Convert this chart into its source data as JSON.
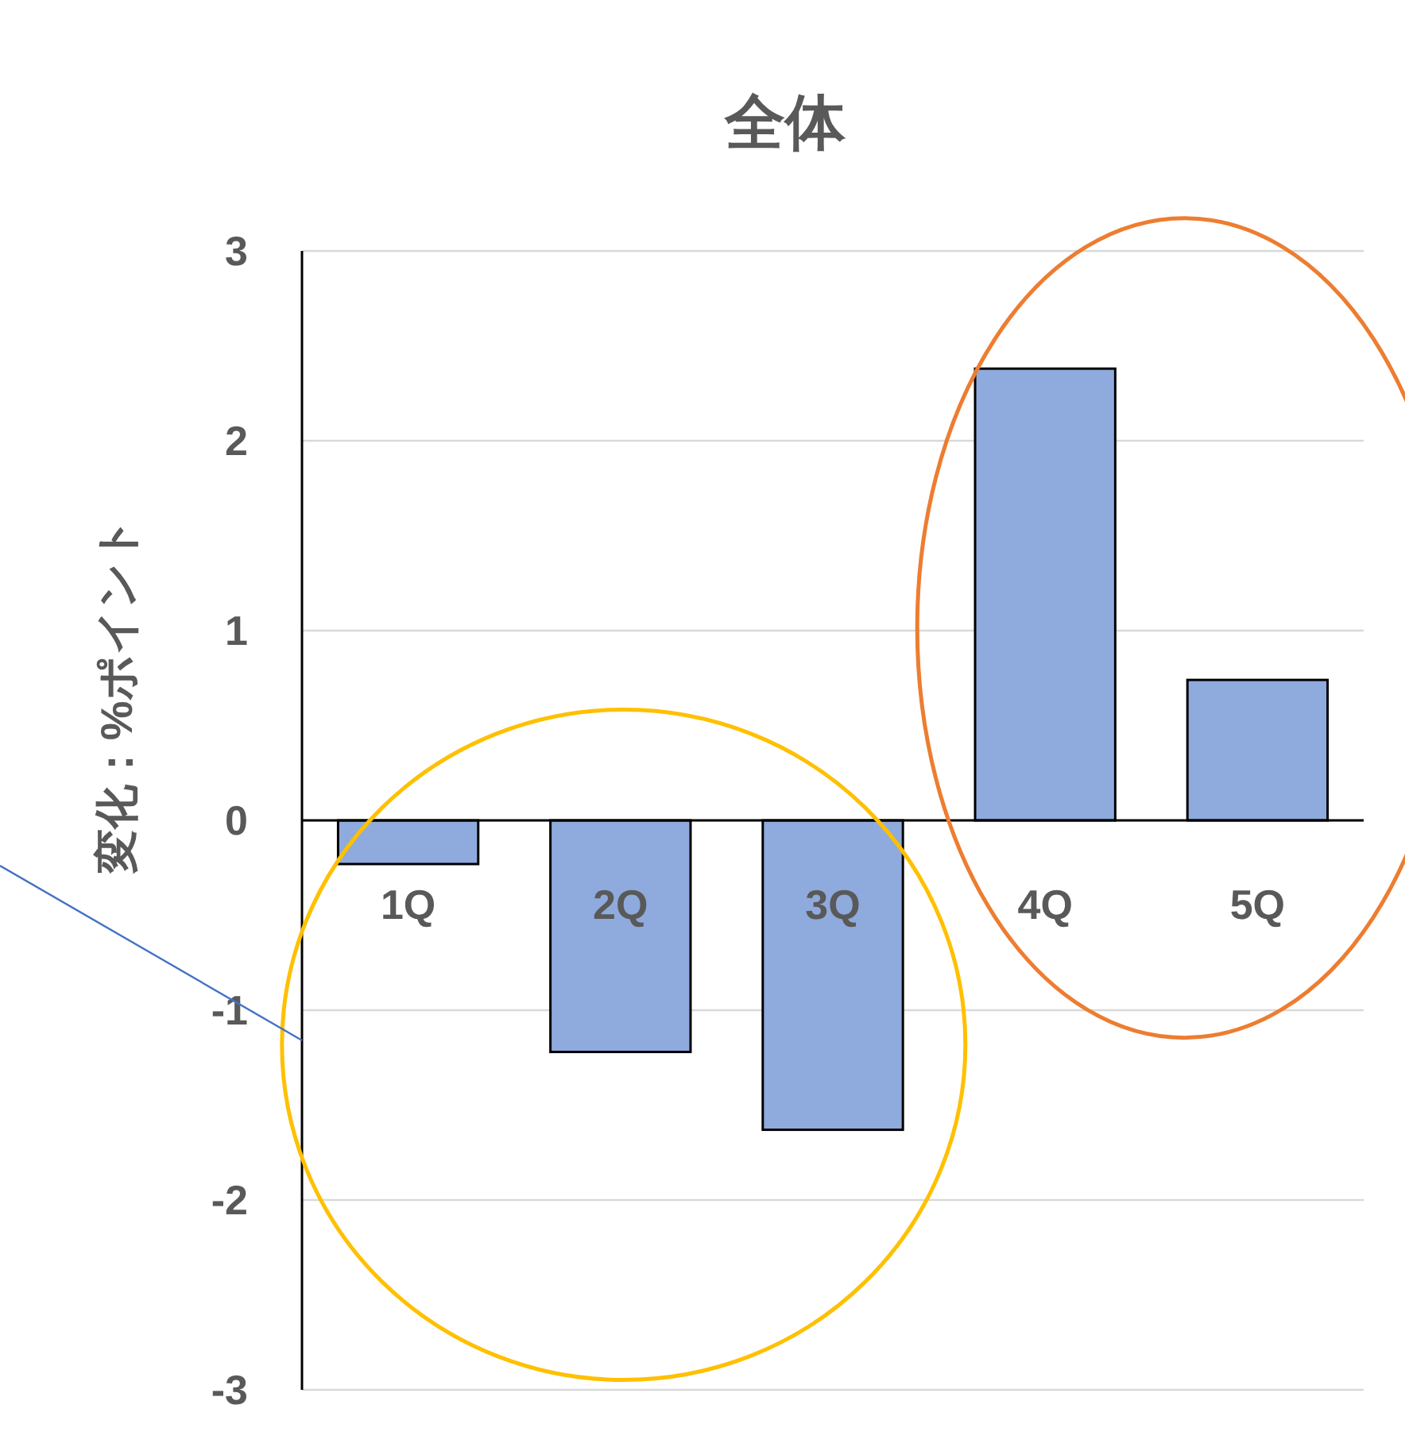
{
  "chart_data": {
    "type": "bar",
    "title": "全体",
    "ylabel": "変化：%ポイント",
    "categories": [
      "1Q",
      "2Q",
      "3Q",
      "4Q",
      "5Q"
    ],
    "values": [
      -0.23,
      -1.22,
      -1.63,
      2.38,
      0.74
    ],
    "color": "#8faadc",
    "ylim": [
      -3,
      3
    ],
    "yticks": [
      -3,
      -2,
      -1,
      0,
      1,
      2,
      3
    ],
    "grid": "y"
  }
}
